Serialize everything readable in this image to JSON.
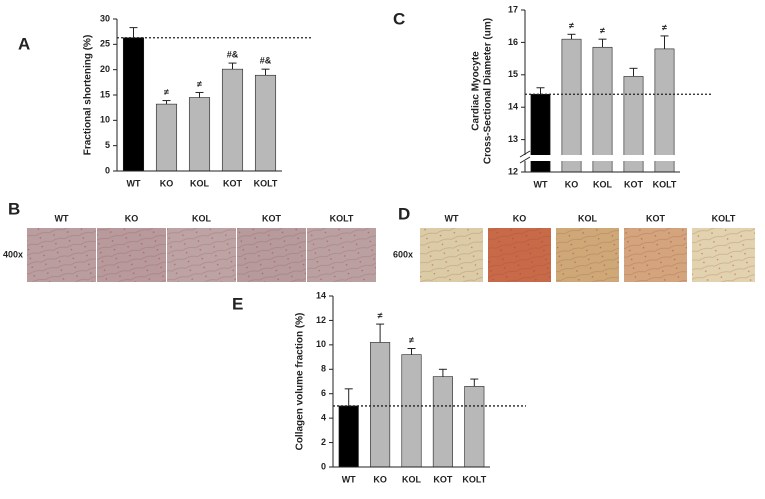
{
  "chart_data": [
    {
      "type": "bar",
      "label": "A",
      "ylabel": [
        "Fractional shortening (%)"
      ],
      "categories": [
        "WT",
        "KO",
        "KOL",
        "KOT",
        "KOLT"
      ],
      "values": [
        26.3,
        13.2,
        14.5,
        20.1,
        18.9
      ],
      "errors": [
        2.0,
        0.7,
        1.0,
        1.2,
        1.2
      ],
      "annotations": [
        null,
        "≠",
        "≠",
        "#&",
        "#&"
      ],
      "colors": [
        "#000000",
        "#b8b8b8",
        "#b8b8b8",
        "#b8b8b8",
        "#b8b8b8"
      ],
      "ylim": [
        0,
        30
      ],
      "yticks": [
        0,
        5,
        10,
        15,
        20,
        25,
        30
      ],
      "reference_line": 26.3,
      "axis_break": false
    },
    {
      "type": "bar",
      "label": "C",
      "ylabel": [
        "Cardiac Myocyte",
        "Cross-Sectional Diameter (um)"
      ],
      "categories": [
        "WT",
        "KO",
        "KOL",
        "KOT",
        "KOLT"
      ],
      "values": [
        14.4,
        16.1,
        15.85,
        14.95,
        15.8
      ],
      "errors": [
        0.2,
        0.15,
        0.25,
        0.25,
        0.4
      ],
      "annotations": [
        null,
        "≠",
        "≠",
        null,
        "≠"
      ],
      "colors": [
        "#000000",
        "#b8b8b8",
        "#b8b8b8",
        "#b8b8b8",
        "#b8b8b8"
      ],
      "ylim": [
        12,
        17
      ],
      "yticks": [
        12,
        13,
        14,
        15,
        16,
        17
      ],
      "reference_line": 14.4,
      "axis_break": true
    },
    {
      "type": "bar",
      "label": "E",
      "ylabel": [
        "Collagen volume fraction (%)"
      ],
      "categories": [
        "WT",
        "KO",
        "KOL",
        "KOT",
        "KOLT"
      ],
      "values": [
        5.0,
        10.2,
        9.2,
        7.4,
        6.6
      ],
      "errors": [
        1.4,
        1.5,
        0.5,
        0.6,
        0.6
      ],
      "annotations": [
        null,
        "≠",
        "≠",
        null,
        null
      ],
      "colors": [
        "#000000",
        "#b8b8b8",
        "#b8b8b8",
        "#b8b8b8",
        "#b8b8b8"
      ],
      "ylim": [
        0,
        14
      ],
      "yticks": [
        0,
        2,
        4,
        6,
        8,
        10,
        12,
        14
      ],
      "reference_line": 5.0,
      "axis_break": false
    }
  ],
  "image_panels": [
    {
      "label": "B",
      "magnification": "400x",
      "captions": [
        "WT",
        "KO",
        "KOL",
        "KOT",
        "KOLT"
      ],
      "tile_colors": [
        "#b99d9f",
        "#b8999c",
        "#bda3a4",
        "#b79a9c",
        "#bba0a2"
      ]
    },
    {
      "label": "D",
      "magnification": "600x",
      "captions": [
        "WT",
        "KO",
        "KOL",
        "KOT",
        "KOLT"
      ],
      "tile_colors": [
        "#dccca6",
        "#c86a48",
        "#cfa877",
        "#d4a47c",
        "#e2d2ae"
      ]
    }
  ]
}
